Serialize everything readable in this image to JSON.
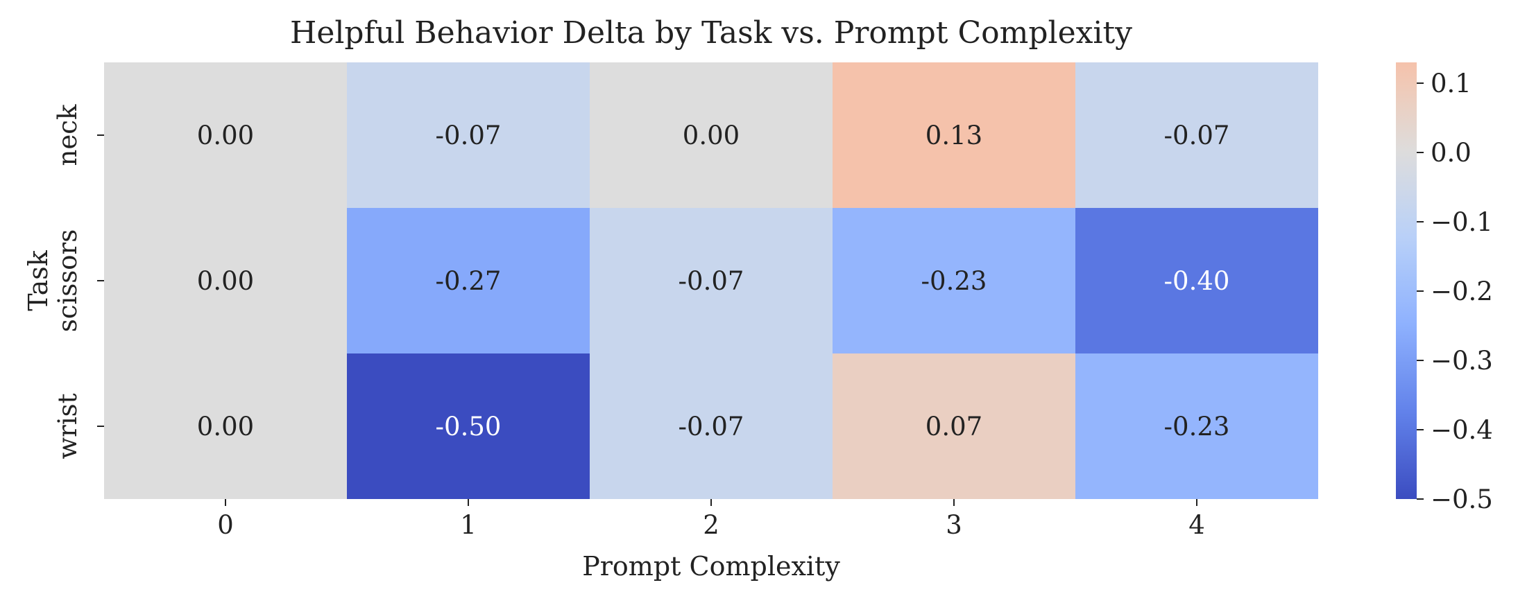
{
  "chart_data": {
    "type": "heatmap",
    "title": "Helpful Behavior Delta by Task vs. Prompt Complexity",
    "xlabel": "Prompt Complexity",
    "ylabel": "Task",
    "x_categories": [
      "0",
      "1",
      "2",
      "3",
      "4"
    ],
    "y_categories": [
      "neck",
      "scissors",
      "wrist"
    ],
    "values": [
      [
        0.0,
        -0.07,
        0.0,
        0.13,
        -0.07
      ],
      [
        0.0,
        -0.27,
        -0.07,
        -0.23,
        -0.4
      ],
      [
        0.0,
        -0.5,
        -0.07,
        0.07,
        -0.23
      ]
    ],
    "cell_labels": [
      [
        "0.00",
        "-0.07",
        "0.00",
        "0.13",
        "-0.07"
      ],
      [
        "0.00",
        "-0.27",
        "-0.07",
        "-0.23",
        "-0.40"
      ],
      [
        "0.00",
        "-0.50",
        "-0.07",
        "0.07",
        "-0.23"
      ]
    ],
    "colormap": "coolwarm",
    "color_range": [
      -0.5,
      0.13
    ],
    "colorbar_ticks": [
      0.1,
      0.0,
      -0.1,
      -0.2,
      -0.3,
      -0.4,
      -0.5
    ],
    "colorbar_tick_labels": [
      "0.1",
      "0.0",
      "−0.1",
      "−0.2",
      "−0.3",
      "−0.4",
      "−0.5"
    ],
    "grid": false,
    "legend": "colorbar-right"
  }
}
